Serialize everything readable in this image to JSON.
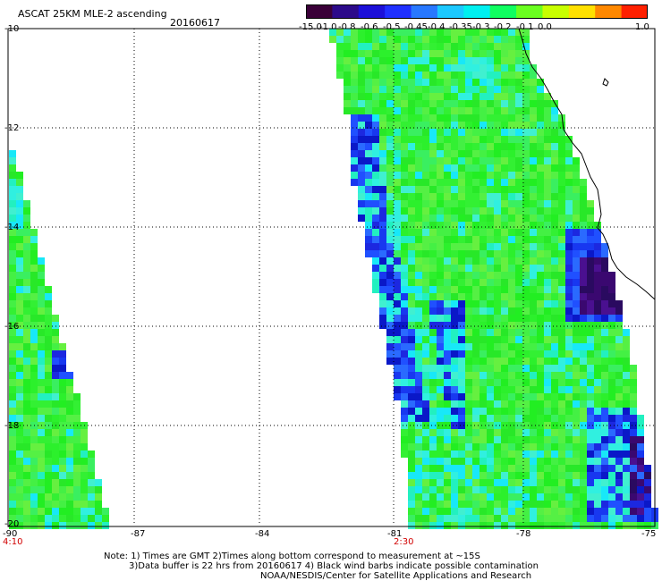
{
  "header": {
    "title": "ASCAT 25KM MLE-2 ascending",
    "date": "20160617"
  },
  "colorbar": {
    "labels": [
      "-15.0",
      "-1.0",
      "-0.8",
      "-0.6",
      "-0.5",
      "-0.45",
      "-0.4",
      "-0.35",
      "-0.3",
      "-0.2",
      "-0.1",
      "0.0",
      "1.0"
    ],
    "colors": [
      "#3a0038",
      "#2c0a8a",
      "#1c10d8",
      "#2030ff",
      "#2878ff",
      "#1cc8ff",
      "#00f0f0",
      "#10ff60",
      "#6aff20",
      "#c8ff00",
      "#ffe000",
      "#ff8800",
      "#ff2000"
    ]
  },
  "map": {
    "lat_labels": [
      "-10",
      "-12",
      "-14",
      "-16",
      "-18",
      "-20"
    ],
    "lon_labels": [
      "-90",
      "-87",
      "-84",
      "-81",
      "-78",
      "-75"
    ],
    "time_labels": [
      "4:10",
      "2:30"
    ],
    "land_color": "#ffffff",
    "coast_color": "#000000"
  },
  "notes": [
    "Note: 1) Times are GMT 2)Times along bottom correspond to measurement at ~15S",
    "3)Data buffer is 22 hrs from 20160617 4) Black wind barbs indicate possible contamination",
    "NOAA/NESDIS/Center for Satellite Applications and Research"
  ]
}
